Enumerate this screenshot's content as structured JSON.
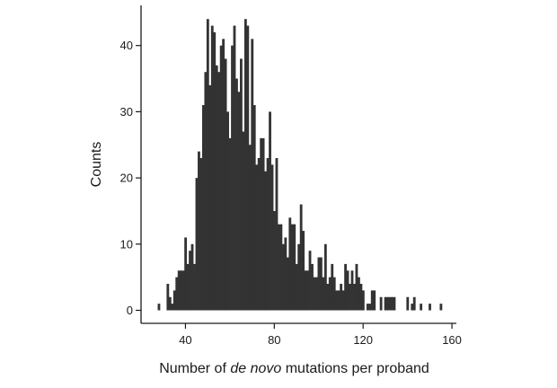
{
  "chart_data": {
    "type": "bar",
    "title": "",
    "xlabel_parts": [
      {
        "text": "Number of ",
        "italic": false
      },
      {
        "text": "de novo",
        "italic": true
      },
      {
        "text": " mutations per proband",
        "italic": false
      }
    ],
    "ylabel": "Counts",
    "xlim": [
      20,
      162
    ],
    "ylim": [
      0,
      46
    ],
    "xticks": [
      40,
      80,
      120,
      160
    ],
    "yticks": [
      0,
      10,
      20,
      30,
      40
    ],
    "xtick_labels": [
      "40",
      "80",
      "120",
      "160"
    ],
    "ytick_labels": [
      "0",
      "10",
      "20",
      "30",
      "40"
    ],
    "bar_color": "#333333",
    "grid": false,
    "legend": "none",
    "bins": {
      "x": [
        28,
        32,
        33,
        34,
        35,
        36,
        37,
        38,
        39,
        40,
        41,
        42,
        43,
        44,
        45,
        46,
        47,
        48,
        49,
        50,
        51,
        52,
        53,
        54,
        55,
        56,
        57,
        58,
        59,
        60,
        61,
        62,
        63,
        64,
        65,
        66,
        67,
        68,
        69,
        70,
        71,
        72,
        73,
        74,
        75,
        76,
        77,
        78,
        79,
        80,
        81,
        82,
        83,
        84,
        85,
        86,
        87,
        88,
        89,
        90,
        91,
        92,
        93,
        94,
        95,
        96,
        97,
        98,
        99,
        100,
        101,
        102,
        103,
        104,
        105,
        106,
        107,
        108,
        109,
        110,
        111,
        112,
        113,
        114,
        115,
        116,
        117,
        118,
        119,
        120,
        122,
        123,
        124,
        125,
        128,
        130,
        131,
        132,
        133,
        134,
        140,
        142,
        143,
        146,
        150,
        155
      ],
      "counts": [
        1,
        4,
        2,
        1,
        3,
        5,
        6,
        6,
        6,
        11,
        7,
        9,
        10,
        7,
        20,
        24,
        23,
        31,
        36,
        44,
        34,
        43,
        42,
        37,
        36,
        40,
        41,
        38,
        30,
        26,
        40,
        43,
        35,
        33,
        38,
        27,
        44,
        43,
        25,
        41,
        31,
        22,
        23,
        26,
        26,
        21,
        23,
        30,
        22,
        15,
        23,
        13,
        13,
        10,
        11,
        8,
        14,
        13,
        13,
        7,
        10,
        16,
        12,
        6,
        6,
        9,
        7,
        5,
        5,
        8,
        8,
        5,
        10,
        4,
        5,
        7,
        5,
        3,
        3,
        4,
        3,
        7,
        6,
        4,
        6,
        4,
        7,
        5,
        4,
        3,
        1,
        1,
        3,
        3,
        2,
        2,
        2,
        2,
        2,
        2,
        2,
        1,
        2,
        1,
        1,
        1
      ]
    }
  }
}
